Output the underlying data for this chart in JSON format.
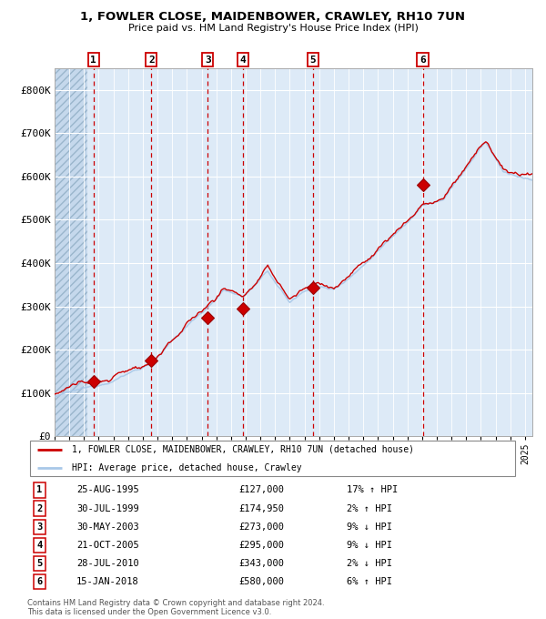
{
  "title1": "1, FOWLER CLOSE, MAIDENBOWER, CRAWLEY, RH10 7UN",
  "title2": "Price paid vs. HM Land Registry's House Price Index (HPI)",
  "ylim": [
    0,
    850000
  ],
  "yticks": [
    0,
    100000,
    200000,
    300000,
    400000,
    500000,
    600000,
    700000,
    800000
  ],
  "ytick_labels": [
    "£0",
    "£100K",
    "£200K",
    "£300K",
    "£400K",
    "£500K",
    "£600K",
    "£700K",
    "£800K"
  ],
  "xlim_start": 1993.0,
  "xlim_end": 2025.5,
  "hpi_color": "#a8c8e8",
  "price_color": "#cc0000",
  "bg_color": "#ddeaf7",
  "grid_color": "#ffffff",
  "sale_dates_decimal": [
    1995.648,
    1999.578,
    2003.414,
    2005.808,
    2010.572,
    2018.042
  ],
  "sale_prices": [
    127000,
    174950,
    273000,
    295000,
    343000,
    580000
  ],
  "sale_numbers": [
    1,
    2,
    3,
    4,
    5,
    6
  ],
  "sale_dates_str": [
    "25-AUG-1995",
    "30-JUL-1999",
    "30-MAY-2003",
    "21-OCT-2005",
    "28-JUL-2010",
    "15-JAN-2018"
  ],
  "sale_pct": [
    "17% ↑ HPI",
    "2% ↑ HPI",
    "9% ↓ HPI",
    "9% ↓ HPI",
    "2% ↓ HPI",
    "6% ↑ HPI"
  ],
  "legend_label1": "1, FOWLER CLOSE, MAIDENBOWER, CRAWLEY, RH10 7UN (detached house)",
  "legend_label2": "HPI: Average price, detached house, Crawley",
  "footer1": "Contains HM Land Registry data © Crown copyright and database right 2024.",
  "footer2": "This data is licensed under the Open Government Licence v3.0."
}
